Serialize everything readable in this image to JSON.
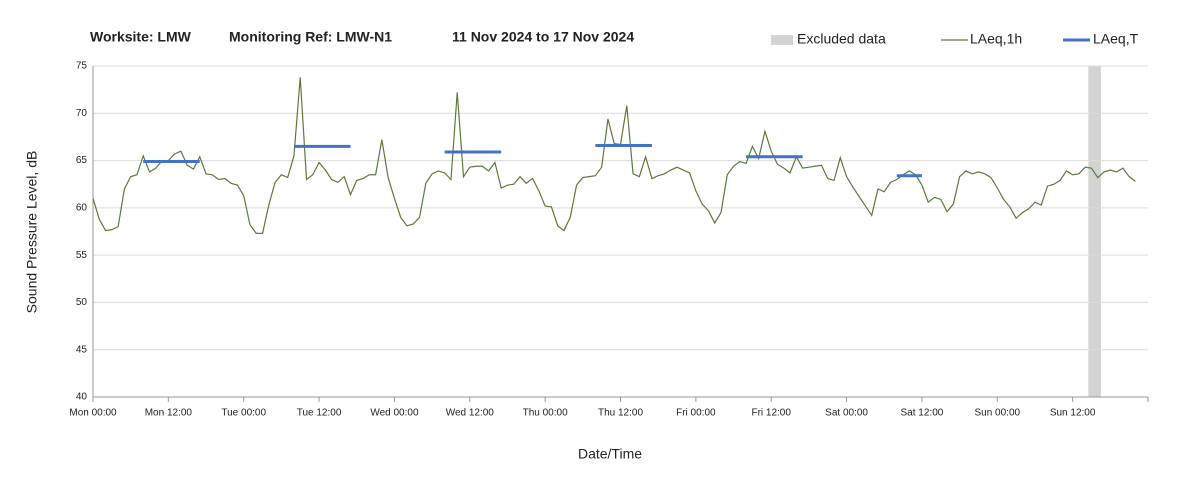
{
  "chart_data": {
    "type": "line",
    "title_parts": [
      "Worksite: LMW",
      "Monitoring Ref: LMW-N1",
      "11 Nov 2024 to 17 Nov 2024"
    ],
    "xlabel": "Date/Time",
    "ylabel": "Sound Pressure Level, dB",
    "xlim": [
      0,
      168
    ],
    "xticks": [
      {
        "value": 0,
        "label": "Mon 00:00"
      },
      {
        "value": 12,
        "label": "Mon 12:00"
      },
      {
        "value": 24,
        "label": "Tue 00:00"
      },
      {
        "value": 36,
        "label": "Tue 12:00"
      },
      {
        "value": 48,
        "label": "Wed 00:00"
      },
      {
        "value": 60,
        "label": "Wed 12:00"
      },
      {
        "value": 72,
        "label": "Thu 00:00"
      },
      {
        "value": 84,
        "label": "Thu 12:00"
      },
      {
        "value": 96,
        "label": "Fri 00:00"
      },
      {
        "value": 108,
        "label": "Fri 12:00"
      },
      {
        "value": 120,
        "label": "Sat 00:00"
      },
      {
        "value": 132,
        "label": "Sat 12:00"
      },
      {
        "value": 144,
        "label": "Sun 00:00"
      },
      {
        "value": 156,
        "label": "Sun 12:00"
      }
    ],
    "ylim": [
      40,
      75
    ],
    "yticks": [
      40,
      45,
      50,
      55,
      60,
      65,
      70,
      75
    ],
    "grid": true,
    "legend": "top-right",
    "excluded": {
      "name": "Excluded data",
      "color": "#d3d3d3",
      "x": [
        158.5,
        160.5
      ]
    },
    "series": [
      {
        "name": "LAeq,1h",
        "color": "#5b7a3c",
        "x": [
          0,
          1,
          2,
          3,
          4,
          5,
          6,
          7,
          8,
          9,
          10,
          11,
          12,
          13,
          14,
          15,
          16,
          17,
          18,
          19,
          20,
          21,
          22,
          23,
          24,
          25,
          26,
          27,
          28,
          29,
          30,
          31,
          32,
          33,
          34,
          35,
          36,
          37,
          38,
          39,
          40,
          41,
          42,
          43,
          44,
          45,
          46,
          47,
          48,
          49,
          50,
          51,
          52,
          53,
          54,
          55,
          56,
          57,
          58,
          59,
          60,
          61,
          62,
          63,
          64,
          65,
          66,
          67,
          68,
          69,
          70,
          71,
          72,
          73,
          74,
          75,
          76,
          77,
          78,
          79,
          80,
          81,
          82,
          83,
          84,
          85,
          86,
          87,
          88,
          89,
          90,
          91,
          92,
          93,
          94,
          95,
          96,
          97,
          98,
          99,
          100,
          101,
          102,
          103,
          104,
          105,
          106,
          107,
          108,
          109,
          110,
          111,
          112,
          113,
          114,
          115,
          116,
          117,
          118,
          119,
          120,
          121,
          122,
          123,
          124,
          125,
          126,
          127,
          128,
          129,
          130,
          131,
          132,
          133,
          134,
          135,
          136,
          137,
          138,
          139,
          140,
          141,
          142,
          143,
          144,
          145,
          146,
          147,
          148,
          149,
          150,
          151,
          152,
          153,
          154,
          155,
          156,
          157,
          158,
          159,
          160,
          161,
          162,
          163,
          164,
          165,
          166
        ],
        "values": [
          61,
          58.8,
          57.6,
          57.7,
          58,
          62,
          63.3,
          63.5,
          65.5,
          63.8,
          64.2,
          65,
          65,
          65.7,
          66,
          64.5,
          64.1,
          65.4,
          63.6,
          63.5,
          63,
          63.1,
          62.6,
          62.4,
          61.3,
          58.2,
          57.3,
          57.3,
          60.3,
          62.7,
          63.5,
          63.2,
          65.5,
          73.8,
          63,
          63.5,
          64.8,
          64,
          63,
          62.7,
          63.3,
          61.4,
          62.9,
          63.1,
          63.5,
          63.5,
          67.2,
          63.2,
          61,
          59,
          58.1,
          58.3,
          59,
          62.6,
          63.6,
          63.9,
          63.7,
          63,
          72.2,
          63.3,
          64.3,
          64.4,
          64.4,
          63.9,
          64.8,
          62.1,
          62.4,
          62.5,
          63.3,
          62.6,
          63.1,
          61.8,
          60.2,
          60.1,
          58.1,
          57.6,
          59,
          62.4,
          63.2,
          63.3,
          63.4,
          64.3,
          69.4,
          66.8,
          66.7,
          70.8,
          63.6,
          63.3,
          65.4,
          63.1,
          63.4,
          63.6,
          64,
          64.3,
          64,
          63.7,
          61.8,
          60.4,
          59.7,
          58.4,
          59.5,
          63.5,
          64.4,
          64.9,
          64.7,
          66.5,
          65.2,
          68.1,
          66,
          64.6,
          64.2,
          63.7,
          65.4,
          64.2,
          64.3,
          64.4,
          64.5,
          63.1,
          62.9,
          65.3,
          63.3,
          62.2,
          61.2,
          60.2,
          59.2,
          62,
          61.7,
          62.7,
          63,
          63.5,
          63.9,
          63.5,
          62.4,
          60.6,
          61.1,
          60.9,
          59.6,
          60.4,
          63.3,
          63.9,
          63.6,
          63.8,
          63.6,
          63.2,
          62.1,
          60.9,
          60.1,
          58.9,
          59.5,
          59.9,
          60.6,
          60.3,
          62.3,
          62.5,
          62.9,
          63.9,
          63.5,
          63.6,
          64.3,
          64.2,
          63.2,
          63.8,
          64,
          63.8,
          64.2,
          63.3,
          62.8
        ]
      },
      {
        "name": "LAeq,T",
        "color": "#4472c4",
        "segments": [
          {
            "x": [
              8,
              17
            ],
            "value": 64.9
          },
          {
            "x": [
              32,
              41
            ],
            "value": 66.5
          },
          {
            "x": [
              56,
              65
            ],
            "value": 65.9
          },
          {
            "x": [
              80,
              89
            ],
            "value": 66.6
          },
          {
            "x": [
              104,
              113
            ],
            "value": 65.4
          },
          {
            "x": [
              128,
              132
            ],
            "value": 63.4
          }
        ]
      }
    ]
  }
}
